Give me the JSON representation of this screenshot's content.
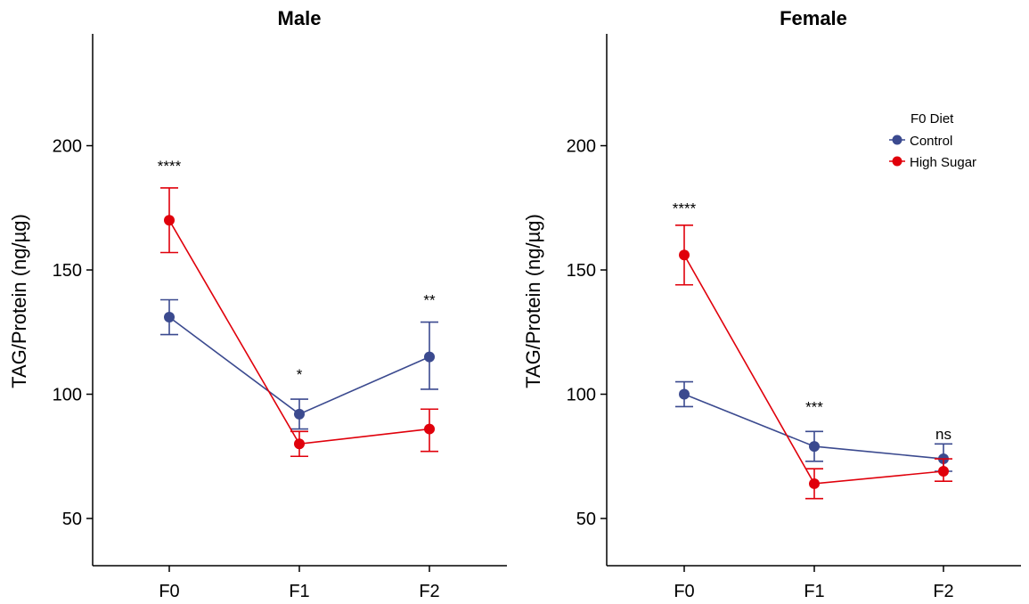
{
  "legend": {
    "title": "F0 Diet",
    "entries": [
      {
        "name": "Control",
        "color": "#3B4A8F"
      },
      {
        "name": "High Sugar",
        "color": "#E0000B"
      }
    ]
  },
  "chart_data": [
    {
      "type": "line",
      "title": "Male",
      "xlabel": "",
      "ylabel": "TAG/Protein (ng/µg)",
      "categories": [
        "F0",
        "F1",
        "F2"
      ],
      "ylim": [
        31,
        245
      ],
      "yticks": [
        50,
        100,
        150,
        200
      ],
      "series": [
        {
          "name": "Control",
          "color": "#3B4A8F",
          "values": [
            131,
            92,
            115
          ],
          "err_low": [
            124,
            86,
            102
          ],
          "err_high": [
            138,
            98,
            129
          ]
        },
        {
          "name": "High Sugar",
          "color": "#E0000B",
          "values": [
            170,
            80,
            86
          ],
          "err_low": [
            157,
            75,
            77
          ],
          "err_high": [
            183,
            85,
            94
          ]
        }
      ],
      "annotations": [
        {
          "x": "F0",
          "y": 192,
          "text": "****"
        },
        {
          "x": "F1",
          "y": 108,
          "text": "*"
        },
        {
          "x": "F2",
          "y": 138,
          "text": "**"
        }
      ]
    },
    {
      "type": "line",
      "title": "Female",
      "xlabel": "",
      "ylabel": "TAG/Protein (ng/µg)",
      "categories": [
        "F0",
        "F1",
        "F2"
      ],
      "ylim": [
        31,
        245
      ],
      "yticks": [
        50,
        100,
        150,
        200
      ],
      "legend_position": "top-right",
      "series": [
        {
          "name": "Control",
          "color": "#3B4A8F",
          "values": [
            100,
            79,
            74
          ],
          "err_low": [
            95,
            73,
            69
          ],
          "err_high": [
            105,
            85,
            80
          ]
        },
        {
          "name": "High Sugar",
          "color": "#E0000B",
          "values": [
            156,
            64,
            69
          ],
          "err_low": [
            144,
            58,
            65
          ],
          "err_high": [
            168,
            70,
            74
          ]
        }
      ],
      "annotations": [
        {
          "x": "F0",
          "y": 175,
          "text": "****"
        },
        {
          "x": "F1",
          "y": 95,
          "text": "***"
        },
        {
          "x": "F2",
          "y": 84,
          "text": "ns"
        }
      ]
    }
  ]
}
